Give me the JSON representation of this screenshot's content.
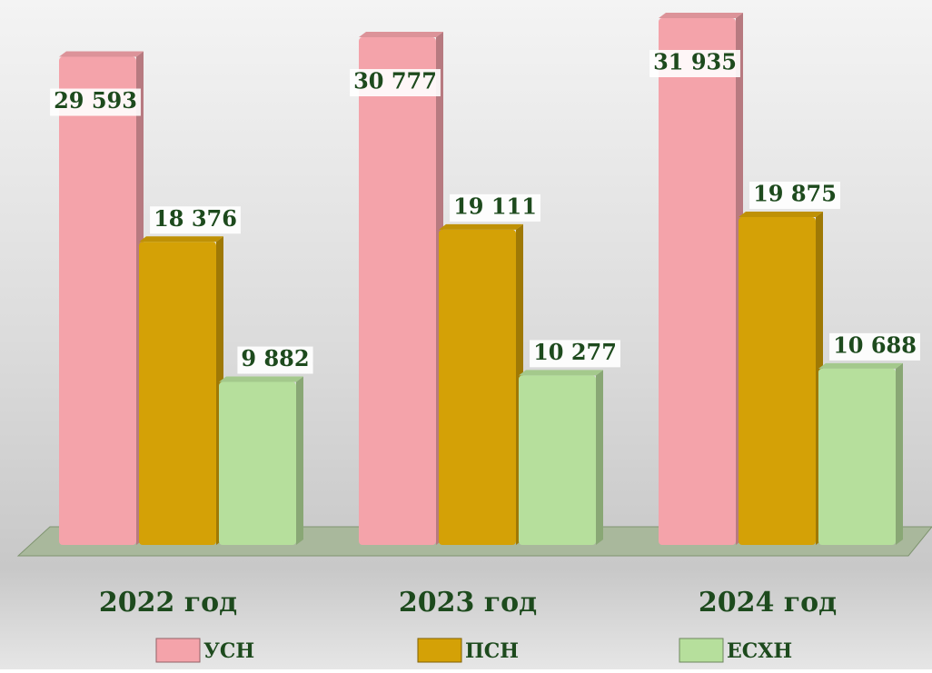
{
  "chart_data": {
    "type": "bar",
    "categories": [
      "2022 год",
      "2023 год",
      "2024 год"
    ],
    "series": [
      {
        "name": "УСН",
        "color": "#f4a3aa",
        "values": [
          29593,
          30777,
          31935
        ],
        "value_labels": [
          "29 593",
          "30 777",
          "31 935"
        ]
      },
      {
        "name": "ПСН",
        "color": "#d4a106",
        "values": [
          18376,
          19111,
          19875
        ],
        "value_labels": [
          "18 376",
          "19 111",
          "19 875"
        ]
      },
      {
        "name": "ЕСХН",
        "color": "#b6df9c",
        "values": [
          9882,
          10277,
          10688
        ],
        "value_labels": [
          "9 882",
          "10 277",
          "10 688"
        ]
      }
    ]
  }
}
